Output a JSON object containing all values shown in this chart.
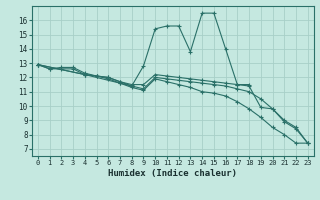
{
  "xlabel": "Humidex (Indice chaleur)",
  "background_color": "#c5e8e0",
  "grid_color": "#a8cfc8",
  "line_color": "#2a7068",
  "xlim": [
    -0.5,
    23.5
  ],
  "ylim": [
    6.5,
    17.0
  ],
  "xticks": [
    0,
    1,
    2,
    3,
    4,
    5,
    6,
    7,
    8,
    9,
    10,
    11,
    12,
    13,
    14,
    15,
    16,
    17,
    18,
    19,
    20,
    21,
    22,
    23
  ],
  "yticks": [
    7,
    8,
    9,
    10,
    11,
    12,
    13,
    14,
    15,
    16
  ],
  "lines": [
    {
      "x": [
        0,
        1,
        2,
        3,
        4,
        5,
        6,
        7,
        8,
        9,
        10,
        11,
        12,
        13,
        14,
        15,
        16,
        17,
        18
      ],
      "y": [
        12.9,
        12.6,
        12.7,
        12.7,
        12.3,
        12.1,
        12.0,
        11.7,
        11.4,
        12.8,
        15.4,
        15.6,
        15.6,
        13.8,
        16.5,
        16.5,
        14.0,
        11.5,
        11.5
      ]
    },
    {
      "x": [
        0,
        1,
        2,
        3,
        4,
        5,
        6,
        7,
        8,
        9,
        10,
        11,
        12,
        13,
        14,
        15,
        16,
        17,
        18,
        19,
        20,
        21,
        22,
        23
      ],
      "y": [
        12.9,
        12.6,
        12.6,
        12.6,
        12.2,
        12.1,
        12.0,
        11.7,
        11.5,
        11.5,
        12.2,
        12.1,
        12.0,
        11.9,
        11.8,
        11.7,
        11.6,
        11.5,
        11.4,
        9.9,
        9.8,
        9.0,
        8.5,
        7.4
      ]
    },
    {
      "x": [
        0,
        4,
        5,
        6,
        7,
        8,
        9,
        10,
        11,
        12,
        13,
        14,
        15,
        16,
        17,
        18,
        19,
        20,
        21,
        22,
        23
      ],
      "y": [
        12.9,
        12.2,
        12.1,
        11.9,
        11.6,
        11.4,
        11.2,
        12.0,
        11.9,
        11.8,
        11.7,
        11.6,
        11.5,
        11.4,
        11.2,
        11.0,
        10.5,
        9.8,
        8.9,
        8.4,
        7.4
      ]
    },
    {
      "x": [
        0,
        4,
        7,
        8,
        9,
        10,
        11,
        12,
        13,
        14,
        15,
        16,
        17,
        18,
        19,
        20,
        21,
        22,
        23
      ],
      "y": [
        12.9,
        12.2,
        11.6,
        11.3,
        11.1,
        11.9,
        11.7,
        11.5,
        11.3,
        11.0,
        10.9,
        10.7,
        10.3,
        9.8,
        9.2,
        8.5,
        8.0,
        7.4,
        7.4
      ]
    }
  ]
}
